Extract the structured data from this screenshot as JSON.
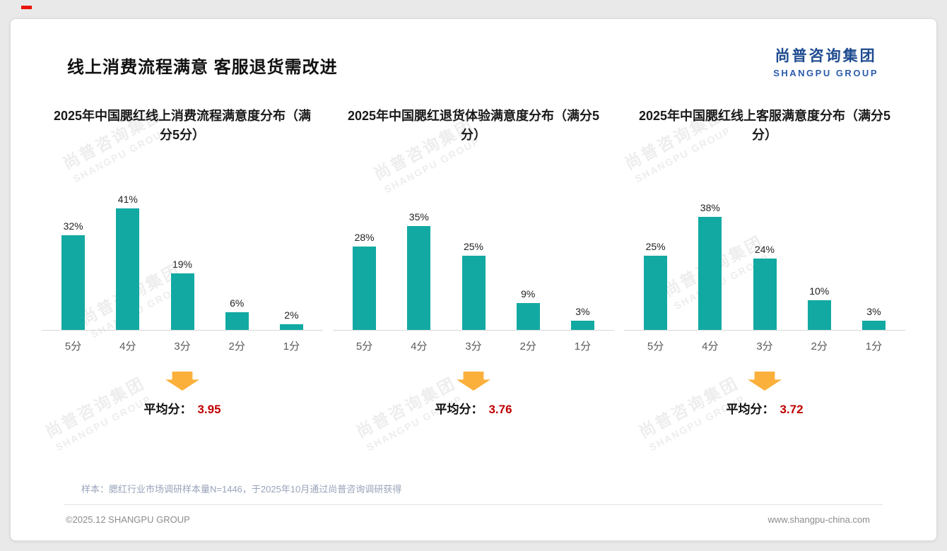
{
  "page": {
    "title": "线上消费流程满意 客服退货需改进",
    "logo": {
      "cn": "尚普咨询集团",
      "en": "SHANGPU GROUP"
    },
    "watermark": {
      "cn": "尚普咨询集团",
      "en": "SHANGPU GROUP"
    },
    "sample_note": "样本：腮红行业市场调研样本量N=1446，于2025年10月通过尚普咨询调研获得",
    "footer_left": "©2025.12 SHANGPU GROUP",
    "footer_right": "www.shangpu-china.com"
  },
  "colors": {
    "bar": "#12a9a3",
    "arrow": "#fbb03b",
    "accent_red": "#c00000",
    "logo_blue": "#1d4a8f"
  },
  "chart_data": [
    {
      "type": "bar",
      "title": "2025年中国腮红线上消费流程满意度分布（满分5分）",
      "categories": [
        "5分",
        "4分",
        "3分",
        "2分",
        "1分"
      ],
      "values": [
        32,
        41,
        19,
        6,
        2
      ],
      "unit": "%",
      "ylim": [
        0,
        45
      ],
      "grid": false,
      "average_label": "平均分：",
      "average": "3.95"
    },
    {
      "type": "bar",
      "title": "2025年中国腮红退货体验满意度分布（满分5分）",
      "categories": [
        "5分",
        "4分",
        "3分",
        "2分",
        "1分"
      ],
      "values": [
        28,
        35,
        25,
        9,
        3
      ],
      "unit": "%",
      "ylim": [
        0,
        45
      ],
      "grid": false,
      "average_label": "平均分：",
      "average": "3.76"
    },
    {
      "type": "bar",
      "title": "2025年中国腮红线上客服满意度分布（满分5分）",
      "categories": [
        "5分",
        "4分",
        "3分",
        "2分",
        "1分"
      ],
      "values": [
        25,
        38,
        24,
        10,
        3
      ],
      "unit": "%",
      "ylim": [
        0,
        45
      ],
      "grid": false,
      "average_label": "平均分：",
      "average": "3.72"
    }
  ]
}
